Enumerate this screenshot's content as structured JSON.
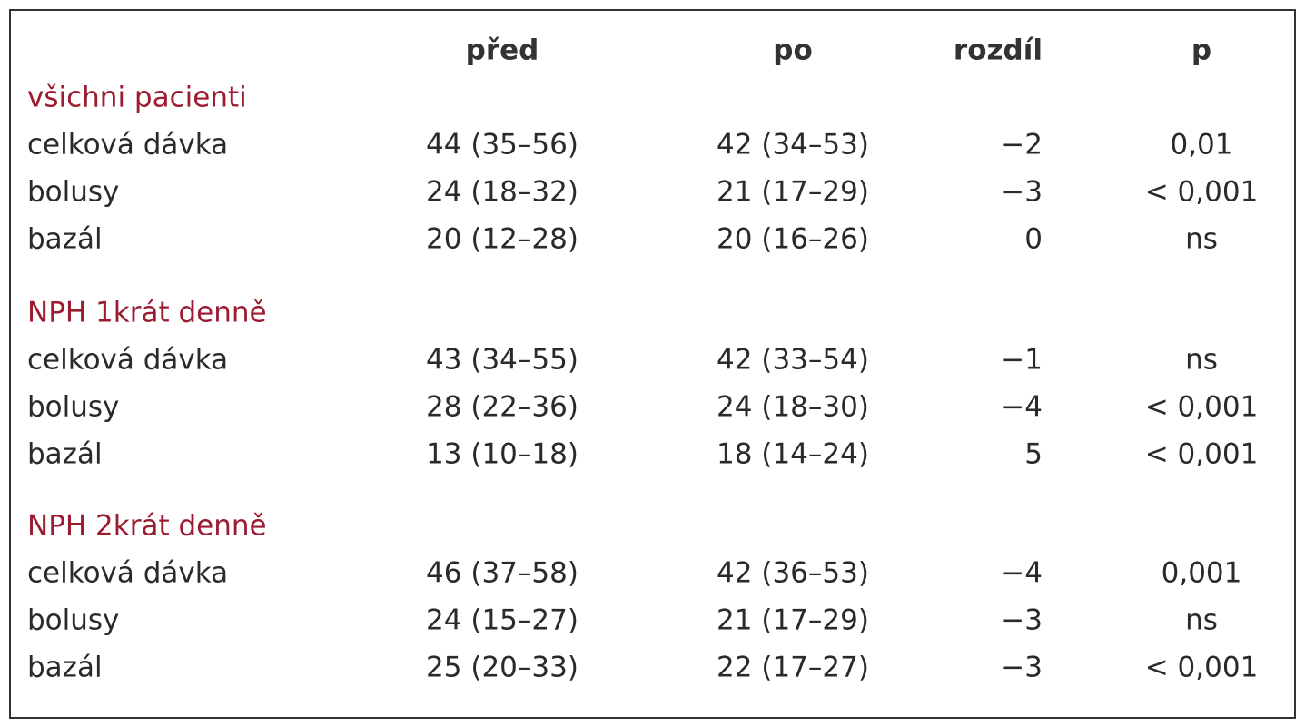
{
  "table": {
    "columns": [
      "",
      "před",
      "po",
      "rozdíl",
      "p"
    ],
    "groups": [
      {
        "title": "všichni pacienti",
        "rows": [
          [
            "celková dávka",
            "44 (35–56)",
            "42 (34–53)",
            "−2",
            "0,01"
          ],
          [
            "bolusy",
            "24 (18–32)",
            "21 (17–29)",
            "−3",
            "< 0,001"
          ],
          [
            "bazál",
            "20 (12–28)",
            "20 (16–26)",
            "0",
            "ns"
          ]
        ]
      },
      {
        "title": "NPH 1krát denně",
        "rows": [
          [
            "celková dávka",
            "43 (34–55)",
            "42 (33–54)",
            "−1",
            "ns"
          ],
          [
            "bolusy",
            "28 (22–36)",
            "24 (18–30)",
            "−4",
            "< 0,001"
          ],
          [
            "bazál",
            "13 (10–18)",
            "18 (14–24)",
            "5",
            "< 0,001"
          ]
        ]
      },
      {
        "title": "NPH 2krát denně",
        "rows": [
          [
            "celková dávka",
            "46 (37–58)",
            "42 (36–53)",
            "−4",
            "0,001"
          ],
          [
            "bolusy",
            "24 (15–27)",
            "21 (17–29)",
            "−3",
            "ns"
          ],
          [
            "bazál",
            "25 (20–33)",
            "22 (17–27)",
            "−3",
            "< 0,001"
          ]
        ]
      }
    ]
  }
}
